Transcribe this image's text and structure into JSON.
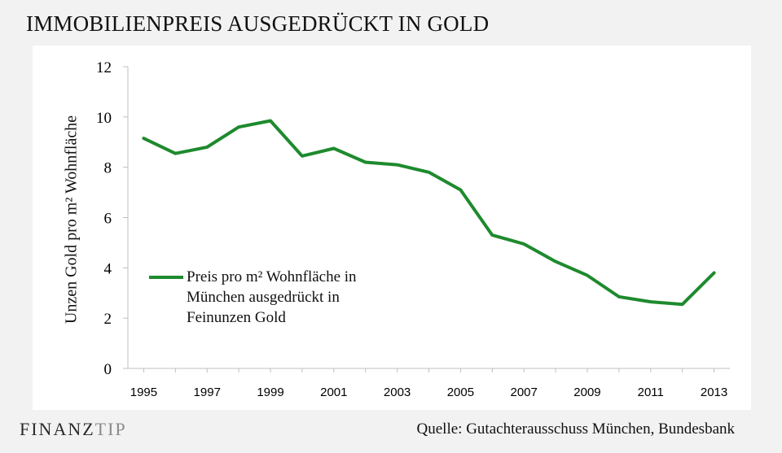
{
  "title": "IMMOBILIENPREIS AUSGEDRÜCKT IN GOLD",
  "brand": {
    "part1": "FINANZ",
    "part2": "TIP"
  },
  "source": "Quelle: Gutachterausschuss München, Bundesbank",
  "colors": {
    "line": "#1e8a2e",
    "axis": "#bfbfbf",
    "background": "#f2f2f2",
    "panel": "#ffffff"
  },
  "chart_data": {
    "type": "line",
    "title": "IMMOBILIENPREIS AUSGEDRÜCKT IN GOLD",
    "xlabel": "",
    "ylabel": "Unzen Gold pro m² Wohnfläche",
    "ylim": [
      0,
      12
    ],
    "yticks": [
      "0",
      "2",
      "4",
      "6",
      "8",
      "10",
      "12"
    ],
    "xticks": [
      "1995",
      "1997",
      "1999",
      "2001",
      "2003",
      "2005",
      "2007",
      "2009",
      "2011",
      "2013"
    ],
    "legend_position": "center-left",
    "grid": false,
    "x": [
      1995,
      1996,
      1997,
      1998,
      1999,
      2000,
      2001,
      2002,
      2003,
      2004,
      2005,
      2006,
      2007,
      2008,
      2009,
      2010,
      2011,
      2012,
      2013
    ],
    "series": [
      {
        "name": "Preis pro m² Wohnfläche in München ausgedrückt in Feinunzen Gold",
        "values": [
          9.15,
          8.55,
          8.8,
          9.6,
          9.85,
          8.45,
          8.75,
          8.2,
          8.1,
          7.8,
          7.1,
          5.3,
          4.95,
          4.25,
          3.7,
          2.85,
          2.65,
          2.55,
          3.8
        ]
      }
    ]
  }
}
